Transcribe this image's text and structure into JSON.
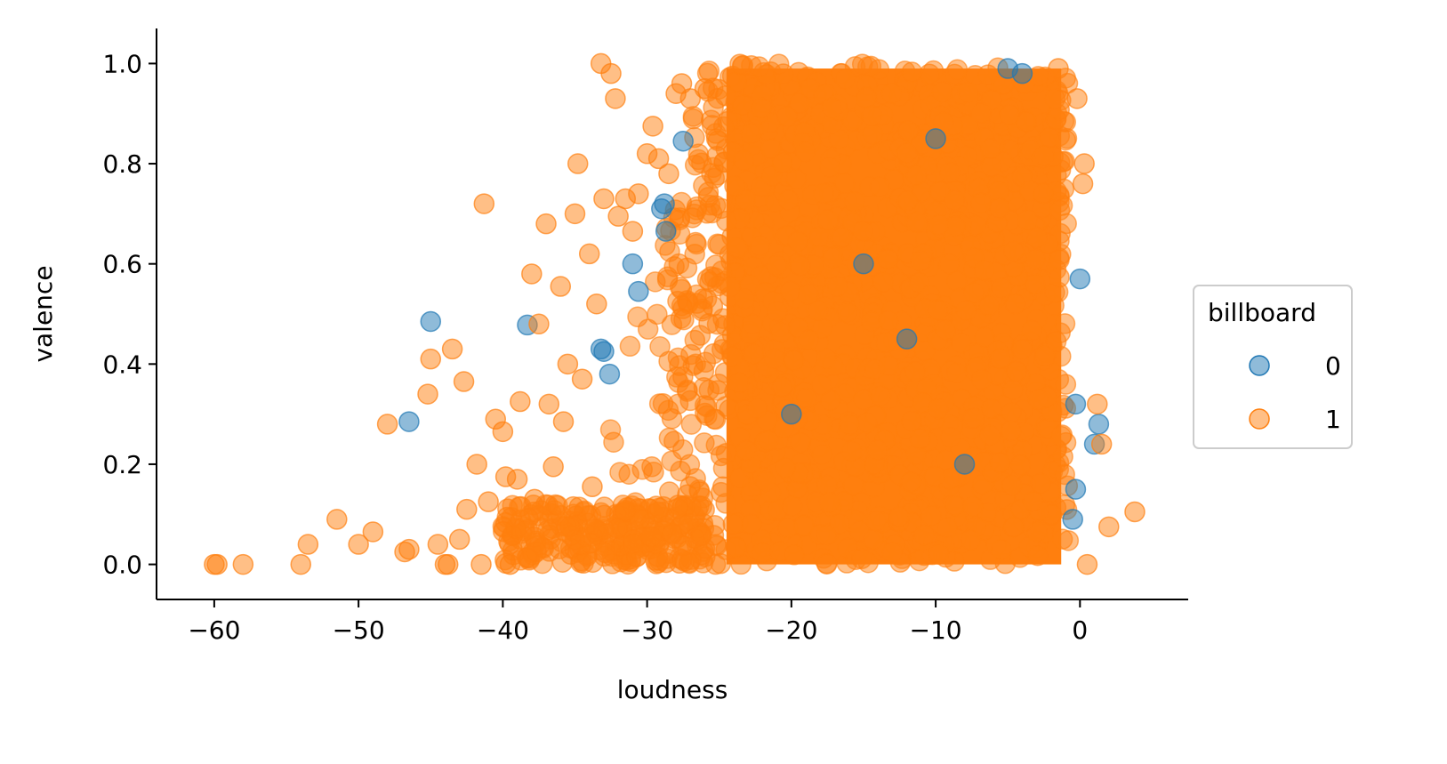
{
  "chart_data": {
    "type": "scatter",
    "xlabel": "loudness",
    "ylabel": "valence",
    "xlim": [
      -64,
      7.5
    ],
    "ylim": [
      -0.07,
      1.07
    ],
    "x_ticks": [
      -60,
      -50,
      -40,
      -30,
      -20,
      -10,
      0
    ],
    "x_tick_labels": [
      "−60",
      "−50",
      "−40",
      "−30",
      "−20",
      "−10",
      "0"
    ],
    "y_ticks": [
      0.0,
      0.2,
      0.4,
      0.6,
      0.8,
      1.0
    ],
    "y_tick_labels": [
      "0.0",
      "0.2",
      "0.4",
      "0.6",
      "0.8",
      "1.0"
    ],
    "grid": false,
    "legend": {
      "title": "billboard",
      "placement": "center-right-outside",
      "entries": [
        "0",
        "1"
      ]
    },
    "colors": {
      "0": "#1f77b4",
      "1": "#ff7f0e"
    },
    "marker_alpha": 0.5,
    "dense_region": {
      "note_values": "core mass of points roughly loudness -25 to -1, valence 0 to 1",
      "x_range": [
        -25,
        -1
      ],
      "y_range": [
        0.0,
        1.0
      ]
    },
    "series": [
      {
        "name": "0",
        "points": [
          [
            -46.5,
            0.285
          ],
          [
            -45.0,
            0.485
          ],
          [
            -38.3,
            0.478
          ],
          [
            -33.2,
            0.43
          ],
          [
            -33.0,
            0.425
          ],
          [
            -32.6,
            0.38
          ],
          [
            -31.0,
            0.6
          ],
          [
            -30.6,
            0.545
          ],
          [
            -29.0,
            0.71
          ],
          [
            -28.8,
            0.72
          ],
          [
            -28.7,
            0.665
          ],
          [
            -27.5,
            0.845
          ],
          [
            -0.3,
            0.15
          ],
          [
            -0.5,
            0.09
          ],
          [
            -0.3,
            0.32
          ],
          [
            0.0,
            0.57
          ],
          [
            1.0,
            0.24
          ],
          [
            1.3,
            0.28
          ],
          [
            -20.0,
            0.3
          ],
          [
            -15.0,
            0.6
          ],
          [
            -10.0,
            0.85
          ],
          [
            -5.0,
            0.99
          ],
          [
            -4.0,
            0.98
          ],
          [
            -8.0,
            0.2
          ],
          [
            -12.0,
            0.45
          ]
        ]
      },
      {
        "name": "1",
        "points": [
          [
            -60.0,
            0.0
          ],
          [
            -59.8,
            0.0
          ],
          [
            -58.0,
            0.0
          ],
          [
            -54.0,
            0.0
          ],
          [
            -53.5,
            0.04
          ],
          [
            -51.5,
            0.09
          ],
          [
            -50.0,
            0.04
          ],
          [
            -49.0,
            0.065
          ],
          [
            -48.0,
            0.28
          ],
          [
            -46.8,
            0.025
          ],
          [
            -46.5,
            0.03
          ],
          [
            -45.2,
            0.34
          ],
          [
            -45.0,
            0.41
          ],
          [
            -44.5,
            0.04
          ],
          [
            -44.0,
            0.0
          ],
          [
            -43.8,
            0.0
          ],
          [
            -43.5,
            0.43
          ],
          [
            -43.0,
            0.05
          ],
          [
            -42.7,
            0.365
          ],
          [
            -42.5,
            0.11
          ],
          [
            -41.8,
            0.2
          ],
          [
            -41.5,
            0.0
          ],
          [
            -41.3,
            0.72
          ],
          [
            -41.0,
            0.125
          ],
          [
            -40.5,
            0.29
          ],
          [
            -40.0,
            0.265
          ],
          [
            -39.8,
            0.175
          ],
          [
            -39.5,
            0.0
          ],
          [
            -39.0,
            0.17
          ],
          [
            -38.8,
            0.325
          ],
          [
            -38.0,
            0.58
          ],
          [
            -37.8,
            0.13
          ],
          [
            -37.5,
            0.48
          ],
          [
            -37.0,
            0.68
          ],
          [
            -36.8,
            0.32
          ],
          [
            -36.5,
            0.195
          ],
          [
            -36.0,
            0.555
          ],
          [
            -35.8,
            0.285
          ],
          [
            -35.5,
            0.4
          ],
          [
            -35.0,
            0.7
          ],
          [
            -34.8,
            0.8
          ],
          [
            -34.5,
            0.37
          ],
          [
            -34.0,
            0.62
          ],
          [
            -33.8,
            0.155
          ],
          [
            -33.5,
            0.52
          ],
          [
            -33.2,
            1.0
          ],
          [
            -33.0,
            0.73
          ],
          [
            -32.5,
            0.98
          ],
          [
            -32.2,
            0.93
          ],
          [
            -32.0,
            0.695
          ],
          [
            -31.5,
            0.73
          ],
          [
            -31.0,
            0.665
          ],
          [
            -30.6,
            0.74
          ],
          [
            -30.0,
            0.82
          ],
          [
            -29.6,
            0.875
          ],
          [
            -29.2,
            0.81
          ],
          [
            -28.5,
            0.78
          ],
          [
            -28.0,
            0.94
          ],
          [
            -27.6,
            0.96
          ],
          [
            -27.0,
            0.93
          ],
          [
            -26.0,
            0.95
          ],
          [
            1.2,
            0.32
          ],
          [
            1.5,
            0.24
          ],
          [
            0.5,
            0.0
          ],
          [
            2.0,
            0.075
          ],
          [
            3.8,
            0.105
          ],
          [
            0.3,
            0.8
          ],
          [
            0.2,
            0.76
          ],
          [
            -0.2,
            0.93
          ],
          [
            -1.5,
            0.99
          ]
        ]
      }
    ]
  }
}
